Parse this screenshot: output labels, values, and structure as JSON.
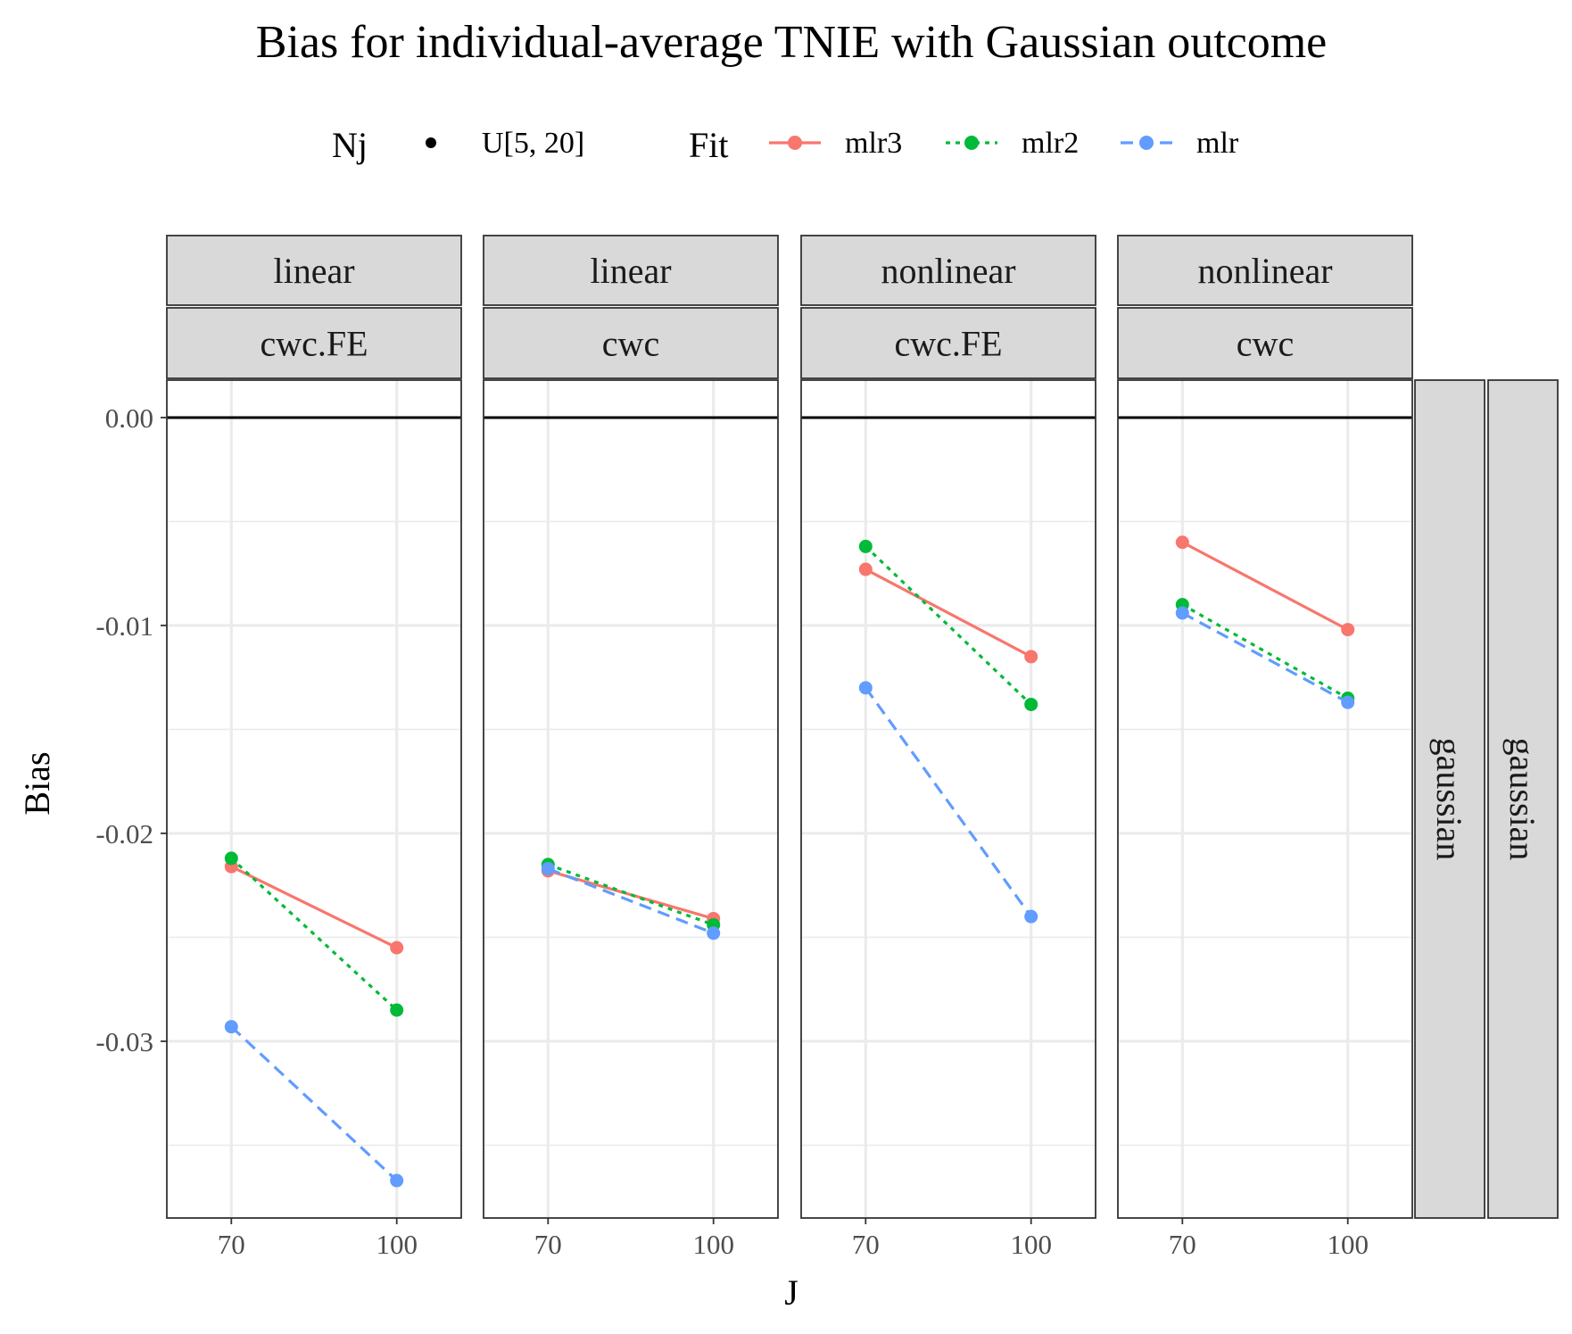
{
  "chart_data": {
    "type": "line",
    "title": "Bias for individual-average TNIE with Gaussian outcome",
    "xlabel": "J",
    "ylabel": "Bias",
    "x": [
      70,
      100
    ],
    "x_ticks": [
      "70",
      "100"
    ],
    "xlim": [
      58.3,
      111.7
    ],
    "ylim": [
      -0.0385,
      0.0018
    ],
    "y_ticks": [
      0.0,
      -0.01,
      -0.02,
      -0.03
    ],
    "y_tick_labels": [
      "0.00",
      "-0.01",
      "-0.02",
      "-0.03"
    ],
    "y_minor_ticks": [
      -0.005,
      -0.015,
      -0.025,
      -0.035
    ],
    "hline": 0,
    "grid": true,
    "legend_position": "top",
    "legend": {
      "nj_title": "Nj",
      "nj_label": "U[5, 20]",
      "fit_title": "Fit",
      "fit_entries": [
        {
          "name": "mlr3",
          "color": "#F8766D",
          "dash": "solid"
        },
        {
          "name": "mlr2",
          "color": "#00BA38",
          "dash": "dotted"
        },
        {
          "name": "mlr",
          "color": "#619CFF",
          "dash": "dashed"
        }
      ]
    },
    "row_strips": [
      "gaussian",
      "gaussian"
    ],
    "panels": [
      {
        "strip_top": "linear",
        "strip_bottom": "cwc.FE",
        "series": [
          {
            "name": "mlr3",
            "values": [
              -0.0216,
              -0.0255
            ]
          },
          {
            "name": "mlr2",
            "values": [
              -0.0212,
              -0.0285
            ]
          },
          {
            "name": "mlr",
            "values": [
              -0.0293,
              -0.0367
            ]
          }
        ]
      },
      {
        "strip_top": "linear",
        "strip_bottom": "cwc",
        "series": [
          {
            "name": "mlr3",
            "values": [
              -0.0218,
              -0.0241
            ]
          },
          {
            "name": "mlr2",
            "values": [
              -0.0215,
              -0.0244
            ]
          },
          {
            "name": "mlr",
            "values": [
              -0.0217,
              -0.0248
            ]
          }
        ]
      },
      {
        "strip_top": "nonlinear",
        "strip_bottom": "cwc.FE",
        "series": [
          {
            "name": "mlr3",
            "values": [
              -0.0073,
              -0.0115
            ]
          },
          {
            "name": "mlr2",
            "values": [
              -0.0062,
              -0.0138
            ]
          },
          {
            "name": "mlr",
            "values": [
              -0.013,
              -0.024
            ]
          }
        ]
      },
      {
        "strip_top": "nonlinear",
        "strip_bottom": "cwc",
        "series": [
          {
            "name": "mlr3",
            "values": [
              -0.006,
              -0.0102
            ]
          },
          {
            "name": "mlr2",
            "values": [
              -0.009,
              -0.0135
            ]
          },
          {
            "name": "mlr",
            "values": [
              -0.0094,
              -0.0137
            ]
          }
        ]
      }
    ]
  }
}
